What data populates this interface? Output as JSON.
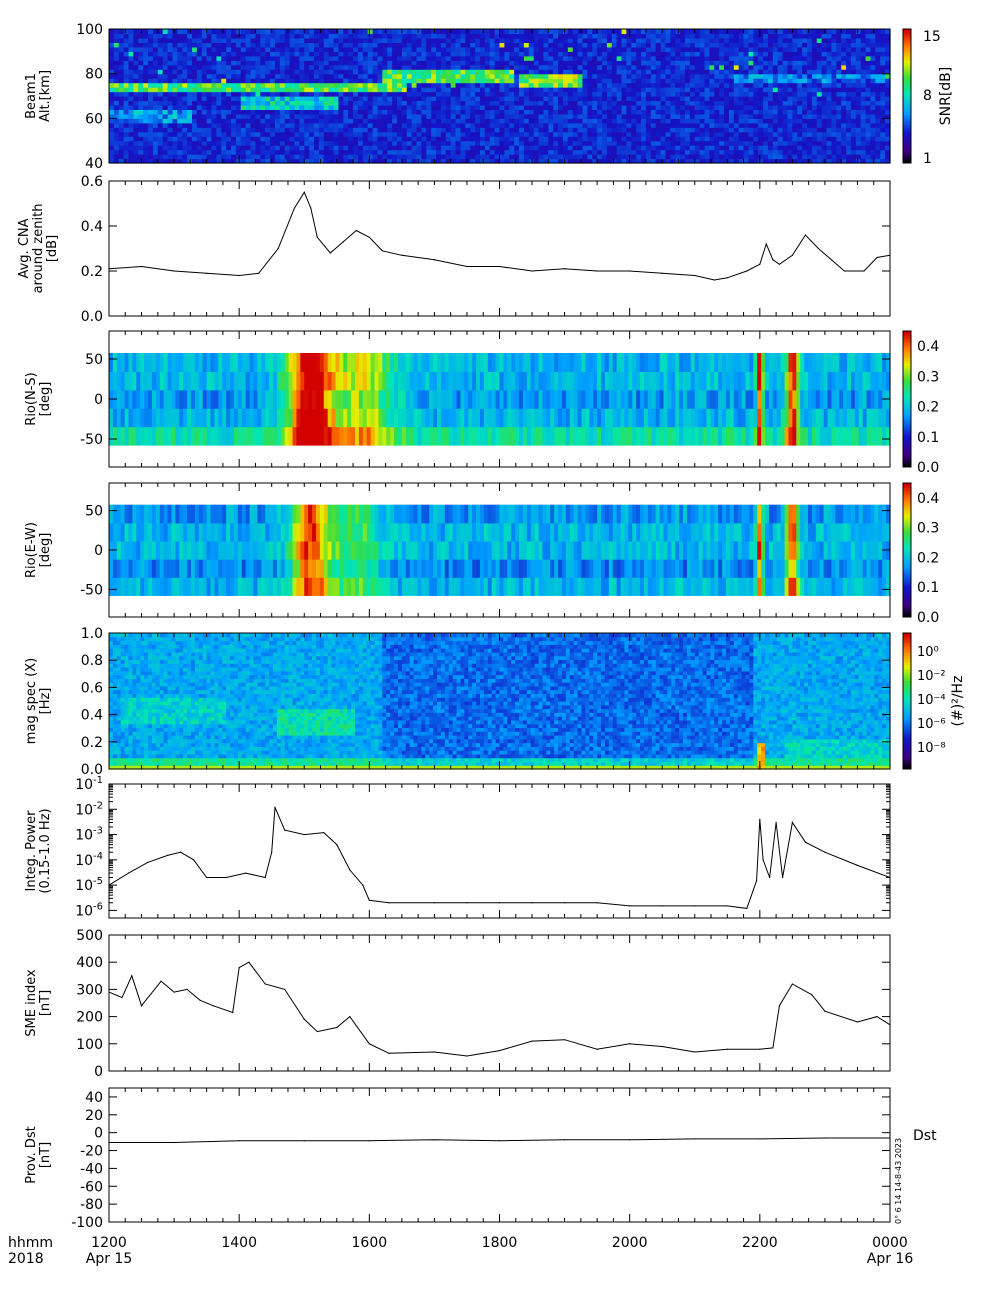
{
  "figure": {
    "time_axis": {
      "label_hhmm": "hhmm",
      "label_year": "2018",
      "ticks": [
        "1200",
        "1400",
        "1600",
        "1800",
        "2000",
        "2200",
        "0000"
      ],
      "dates": [
        {
          "hour": 12,
          "text": "Apr 15"
        },
        {
          "hour": 24,
          "text": "Apr 16"
        }
      ],
      "range_hours": [
        12,
        24
      ]
    },
    "footer_note": "0° 6 14 14-8-43 2023"
  },
  "chart_data": [
    {
      "id": "beam1",
      "type": "heatmap",
      "ylabel": [
        "Beam1",
        "Alt.[km]"
      ],
      "ylim": [
        40,
        100
      ],
      "yticks": [
        40,
        60,
        80,
        100
      ],
      "colorbar": {
        "label": "SNR[dB]",
        "ticks": [
          "15",
          "8",
          "1"
        ],
        "range": [
          1,
          15
        ]
      },
      "features": [
        {
          "t0": 12.0,
          "t1": 16.6,
          "alt": 74,
          "level": 0.75
        },
        {
          "t0": 12.0,
          "t1": 13.3,
          "alt": 61,
          "level": 0.5
        },
        {
          "t0": 14.0,
          "t1": 15.5,
          "alt": 67,
          "level": 0.6
        },
        {
          "t0": 16.2,
          "t1": 18.2,
          "alt": 79,
          "level": 0.75
        },
        {
          "t0": 18.3,
          "t1": 19.3,
          "alt": 77,
          "level": 0.8
        },
        {
          "t0": 21.6,
          "t1": 24.0,
          "alt": 78,
          "level": 0.45
        }
      ]
    },
    {
      "id": "cna",
      "type": "line",
      "ylabel": [
        "Avg. CNA",
        "around zenith",
        "[dB]"
      ],
      "ylim": [
        0.0,
        0.6
      ],
      "yticks": [
        "0.0",
        "0.2",
        "0.4",
        "0.6"
      ],
      "x": [
        12.0,
        12.5,
        13.0,
        13.5,
        14.0,
        14.3,
        14.6,
        14.85,
        15.0,
        15.1,
        15.2,
        15.4,
        15.6,
        15.8,
        16.0,
        16.2,
        16.5,
        17.0,
        17.5,
        18.0,
        18.5,
        19.0,
        19.5,
        20.0,
        20.5,
        21.0,
        21.3,
        21.5,
        21.8,
        22.0,
        22.1,
        22.2,
        22.3,
        22.5,
        22.7,
        22.9,
        23.1,
        23.3,
        23.6,
        23.8,
        24.0
      ],
      "y": [
        0.21,
        0.22,
        0.2,
        0.19,
        0.18,
        0.19,
        0.3,
        0.48,
        0.55,
        0.48,
        0.35,
        0.28,
        0.33,
        0.38,
        0.35,
        0.29,
        0.27,
        0.25,
        0.22,
        0.22,
        0.2,
        0.21,
        0.2,
        0.2,
        0.19,
        0.18,
        0.16,
        0.17,
        0.2,
        0.23,
        0.32,
        0.25,
        0.23,
        0.27,
        0.36,
        0.3,
        0.25,
        0.2,
        0.2,
        0.26,
        0.27
      ]
    },
    {
      "id": "rio_ns",
      "type": "heatmap",
      "ylabel": [
        "Rio(N-S)",
        "[deg]"
      ],
      "ylim": [
        -85,
        85
      ],
      "yticks": [
        -50,
        0,
        50
      ],
      "colorbar": {
        "ticks": [
          "0.4",
          "0.3",
          "0.2",
          "0.1",
          "0.0"
        ],
        "range": [
          0.0,
          0.45
        ]
      },
      "rows": [
        {
          "lat": -50,
          "base": 0.25
        },
        {
          "lat": -25,
          "base": 0.2
        },
        {
          "lat": 0,
          "base": 0.18
        },
        {
          "lat": 25,
          "base": 0.2
        },
        {
          "lat": 50,
          "base": 0.2
        }
      ],
      "events": [
        {
          "t": 15.1,
          "w": 0.35,
          "amp": 0.3
        },
        {
          "t": 15.9,
          "w": 0.5,
          "amp": 0.15
        },
        {
          "t": 22.0,
          "w": 0.05,
          "amp": 0.25
        },
        {
          "t": 22.5,
          "w": 0.1,
          "amp": 0.25
        }
      ]
    },
    {
      "id": "rio_ew",
      "type": "heatmap",
      "ylabel": [
        "Rio(E-W)",
        "[deg]"
      ],
      "ylim": [
        -85,
        85
      ],
      "yticks": [
        -50,
        0,
        50
      ],
      "colorbar": {
        "ticks": [
          "0.4",
          "0.3",
          "0.2",
          "0.1",
          "0.0"
        ],
        "range": [
          0.0,
          0.45
        ]
      },
      "rows": [
        {
          "lat": -50,
          "base": 0.2
        },
        {
          "lat": -25,
          "base": 0.17
        },
        {
          "lat": 0,
          "base": 0.2
        },
        {
          "lat": 25,
          "base": 0.2
        },
        {
          "lat": 50,
          "base": 0.18
        }
      ],
      "events": [
        {
          "t": 15.1,
          "w": 0.3,
          "amp": 0.25
        },
        {
          "t": 15.8,
          "w": 0.4,
          "amp": 0.1
        },
        {
          "t": 22.0,
          "w": 0.05,
          "amp": 0.25
        },
        {
          "t": 22.5,
          "w": 0.1,
          "amp": 0.25
        }
      ]
    },
    {
      "id": "magspec",
      "type": "heatmap",
      "ylabel": [
        "mag spec (X)",
        "[Hz]"
      ],
      "ylim": [
        0.0,
        1.0
      ],
      "yticks": [
        "0.0",
        "0.2",
        "0.4",
        "0.6",
        "0.8",
        "1.0"
      ],
      "colorbar": {
        "label": "(#)²/Hz",
        "ticks": [
          "10⁰",
          "10⁻²",
          "10⁻⁴",
          "10⁻⁶",
          "10⁻⁸"
        ],
        "log_range": [
          -9,
          1
        ]
      },
      "features": [
        {
          "t0": 12.2,
          "t1": 13.8,
          "f": 0.44,
          "level": 0.55
        },
        {
          "t0": 14.6,
          "t1": 15.8,
          "f": 0.35,
          "level": 0.6
        },
        {
          "t0": 21.95,
          "t1": 22.05,
          "f": 0.1,
          "level": 0.9
        },
        {
          "t0": 22.4,
          "t1": 24.0,
          "f": 0.12,
          "level": 0.55
        }
      ]
    },
    {
      "id": "integ_power",
      "type": "line",
      "ylabel": [
        "Integ. Power",
        "(0.15-1.0 Hz)"
      ],
      "yscale": "log",
      "ylim": [
        5e-07,
        0.1
      ],
      "yticks": [
        {
          "v": 1e-06,
          "b": "10",
          "e": "-6"
        },
        {
          "v": 1e-05,
          "b": "10",
          "e": "-5"
        },
        {
          "v": 0.0001,
          "b": "10",
          "e": "-4"
        },
        {
          "v": 0.001,
          "b": "10",
          "e": "-3"
        },
        {
          "v": 0.01,
          "b": "10",
          "e": "-2"
        },
        {
          "v": 0.1,
          "b": "10",
          "e": "-1"
        }
      ],
      "x": [
        12.0,
        12.3,
        12.6,
        12.9,
        13.1,
        13.3,
        13.5,
        13.8,
        14.1,
        14.4,
        14.5,
        14.55,
        14.7,
        15.0,
        15.3,
        15.5,
        15.7,
        15.9,
        16.0,
        16.3,
        17.0,
        17.5,
        18.0,
        18.5,
        19.0,
        19.5,
        20.0,
        20.5,
        21.0,
        21.5,
        21.8,
        21.95,
        22.0,
        22.05,
        22.15,
        22.25,
        22.35,
        22.5,
        22.7,
        23.0,
        23.5,
        24.0
      ],
      "y": [
        1e-05,
        3e-05,
        8e-05,
        0.00015,
        0.0002,
        0.0001,
        2e-05,
        2e-05,
        3e-05,
        2e-05,
        0.0002,
        0.012,
        0.0015,
        0.001,
        0.0012,
        0.0004,
        4e-05,
        1e-05,
        2.5e-06,
        2e-06,
        2e-06,
        2e-06,
        2e-06,
        2e-06,
        2e-06,
        2e-06,
        1.5e-06,
        1.5e-06,
        1.5e-06,
        1.5e-06,
        1.2e-06,
        1.5e-05,
        0.004,
        0.0001,
        2e-05,
        0.003,
        2e-05,
        0.003,
        0.0005,
        0.0002,
        6e-05,
        2e-05
      ]
    },
    {
      "id": "sme",
      "type": "line",
      "ylabel": [
        "SME index",
        "[nT]"
      ],
      "ylim": [
        0,
        500
      ],
      "yticks": [
        0,
        100,
        200,
        300,
        400,
        500
      ],
      "x": [
        12.0,
        12.2,
        12.35,
        12.5,
        12.8,
        13.0,
        13.2,
        13.4,
        13.6,
        13.9,
        14.0,
        14.15,
        14.4,
        14.7,
        15.0,
        15.2,
        15.5,
        15.7,
        16.0,
        16.3,
        17.0,
        17.5,
        18.0,
        18.5,
        19.0,
        19.5,
        20.0,
        20.5,
        21.0,
        21.5,
        22.0,
        22.2,
        22.3,
        22.5,
        22.8,
        23.0,
        23.5,
        23.8,
        24.0
      ],
      "y": [
        290,
        270,
        350,
        240,
        330,
        290,
        300,
        260,
        240,
        215,
        380,
        400,
        320,
        300,
        190,
        145,
        160,
        200,
        100,
        65,
        70,
        55,
        75,
        110,
        115,
        80,
        100,
        90,
        70,
        80,
        80,
        85,
        240,
        320,
        280,
        220,
        180,
        200,
        170
      ]
    },
    {
      "id": "dst",
      "type": "line",
      "ylabel": [
        "Prov. Dst",
        "[nT]"
      ],
      "ylim": [
        -100,
        50
      ],
      "yticks": [
        -100,
        -80,
        -60,
        -40,
        -20,
        0,
        20,
        40
      ],
      "series_label": "Dst",
      "x": [
        12,
        13,
        14,
        15,
        16,
        17,
        18,
        19,
        20,
        21,
        22,
        23,
        24
      ],
      "y": [
        -11,
        -11,
        -9,
        -9,
        -9,
        -8,
        -9,
        -8,
        -8,
        -7,
        -7,
        -6,
        -6
      ]
    }
  ]
}
